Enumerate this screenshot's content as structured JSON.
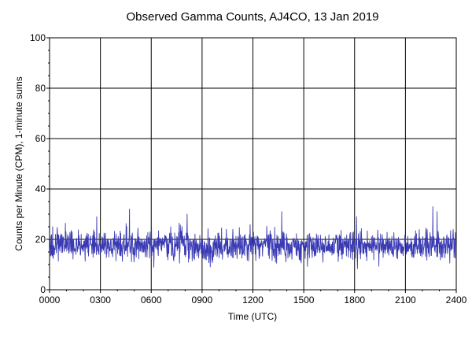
{
  "chart_data": {
    "type": "line",
    "title": "Observed Gamma Counts, AJ4CO, 13 Jan 2019",
    "xlabel": "Time (UTC)",
    "ylabel": "Counts per Minute (CPM), 1-minute sums",
    "x_tick_labels": [
      "0000",
      "0300",
      "0600",
      "0900",
      "1200",
      "1500",
      "1800",
      "2100",
      "2400"
    ],
    "y_ticks": [
      0,
      20,
      40,
      60,
      80,
      100
    ],
    "xlim": [
      0,
      1440
    ],
    "ylim": [
      0,
      100
    ],
    "x_unit": "minutes after 0000 UTC",
    "grid": true,
    "series": [
      {
        "color": "#3a3ab4",
        "sample_interval_minutes": 1,
        "mean": 17.5,
        "min_approx": 6,
        "max_approx": 33,
        "peaks": [
          {
            "x": 167,
            "y": 29
          },
          {
            "x": 283,
            "y": 32
          },
          {
            "x": 487,
            "y": 30
          },
          {
            "x": 822,
            "y": 31
          },
          {
            "x": 1087,
            "y": 29
          },
          {
            "x": 1357,
            "y": 33
          },
          {
            "x": 1372,
            "y": 31
          }
        ]
      }
    ]
  }
}
